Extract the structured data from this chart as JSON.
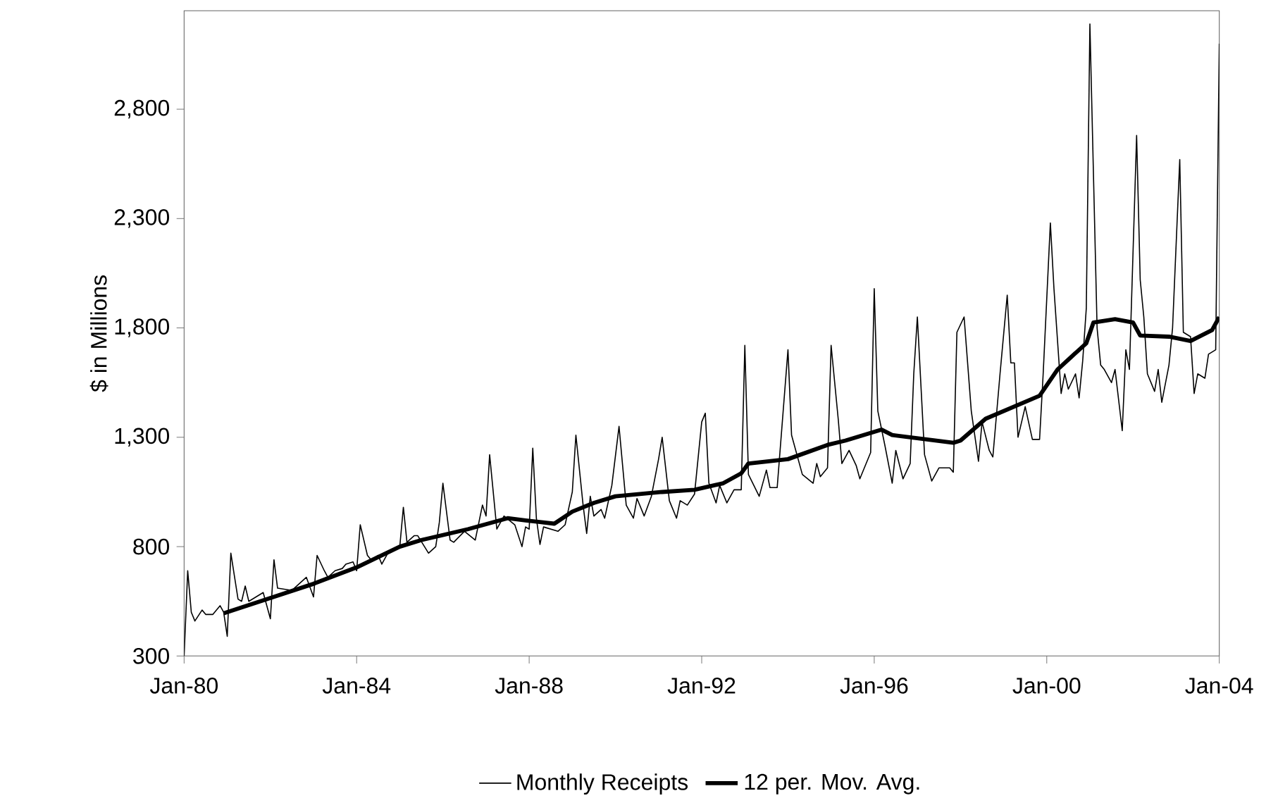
{
  "chart_data": {
    "type": "line",
    "ylabel": "$ in Millions",
    "xlim": [
      "1980-01",
      "2004-01"
    ],
    "xticks": [
      {
        "value": "1980-01",
        "label": "Jan-80"
      },
      {
        "value": "1984-01",
        "label": "Jan-84"
      },
      {
        "value": "1988-01",
        "label": "Jan-88"
      },
      {
        "value": "1992-01",
        "label": "Jan-92"
      },
      {
        "value": "1996-01",
        "label": "Jan-96"
      },
      {
        "value": "2000-01",
        "label": "Jan-00"
      },
      {
        "value": "2004-01",
        "label": "Jan-04"
      }
    ],
    "ylim": [
      300,
      3250
    ],
    "yticks": [
      300,
      800,
      {
        "value": 1300,
        "label": "1,300"
      },
      {
        "value": 1800,
        "label": "1,800"
      },
      {
        "value": 2300,
        "label": "2,300"
      },
      {
        "value": 2800,
        "label": "2,800"
      }
    ],
    "legend": "bottom",
    "grid": false,
    "marker": "none",
    "line_style": "solid",
    "series": [
      {
        "name": "Monthly Receipts",
        "color": "#000000",
        "x": [
          "1980-01",
          "1980-02",
          "1980-03",
          "1980-04",
          "1980-06",
          "1980-07",
          "1980-09",
          "1980-11",
          "1980-12",
          "1981-01",
          "1981-02",
          "1981-04",
          "1981-05",
          "1981-06",
          "1981-07",
          "1981-10",
          "1981-11",
          "1982-01",
          "1982-02",
          "1982-03",
          "1982-07",
          "1982-11",
          "1983-01",
          "1983-02",
          "1983-04",
          "1983-05",
          "1983-07",
          "1983-09",
          "1983-10",
          "1983-12",
          "1984-01",
          "1984-02",
          "1984-04",
          "1984-05",
          "1984-07",
          "1984-08",
          "1984-10",
          "1985-01",
          "1985-02",
          "1985-03",
          "1985-05",
          "1985-06",
          "1985-09",
          "1985-11",
          "1985-12",
          "1986-01",
          "1986-03",
          "1986-04",
          "1986-07",
          "1986-10",
          "1986-12",
          "1987-01",
          "1987-02",
          "1987-04",
          "1987-06",
          "1987-09",
          "1987-11",
          "1987-12",
          "1988-01",
          "1988-02",
          "1988-03",
          "1988-04",
          "1988-05",
          "1988-09",
          "1988-11",
          "1989-01",
          "1989-02",
          "1989-04",
          "1989-05",
          "1989-06",
          "1989-07",
          "1989-09",
          "1989-10",
          "1989-12",
          "1990-02",
          "1990-04",
          "1990-06",
          "1990-07",
          "1990-09",
          "1990-11",
          "1991-01",
          "1991-02",
          "1991-04",
          "1991-06",
          "1991-07",
          "1991-09",
          "1991-11",
          "1992-01",
          "1992-02",
          "1992-03",
          "1992-05",
          "1992-06",
          "1992-08",
          "1992-10",
          "1992-12",
          "1993-01",
          "1993-02",
          "1993-05",
          "1993-07",
          "1993-08",
          "1993-10",
          "1994-01",
          "1994-02",
          "1994-05",
          "1994-08",
          "1994-09",
          "1994-10",
          "1994-12",
          "1995-01",
          "1995-03",
          "1995-04",
          "1995-06",
          "1995-08",
          "1995-09",
          "1995-12",
          "1996-01",
          "1996-02",
          "1996-04",
          "1996-06",
          "1996-07",
          "1996-09",
          "1996-11",
          "1996-12",
          "1997-01",
          "1997-03",
          "1997-04",
          "1997-05",
          "1997-07",
          "1997-10",
          "1997-11",
          "1997-12",
          "1998-02",
          "1998-04",
          "1998-06",
          "1998-07",
          "1998-09",
          "1998-10",
          "1998-12",
          "1999-02",
          "1999-03",
          "1999-04",
          "1999-05",
          "1999-07",
          "1999-09",
          "1999-11",
          "1999-12",
          "2000-02",
          "2000-03",
          "2000-05",
          "2000-06",
          "2000-07",
          "2000-09",
          "2000-10",
          "2000-11",
          "2000-12",
          "2001-01",
          "2001-03",
          "2001-04",
          "2001-05",
          "2001-07",
          "2001-08",
          "2001-10",
          "2001-11",
          "2001-12",
          "2002-02",
          "2002-03",
          "2002-04",
          "2002-05",
          "2002-07",
          "2002-08",
          "2002-09",
          "2002-11",
          "2002-12",
          "2003-02",
          "2003-03",
          "2003-05",
          "2003-06",
          "2003-07",
          "2003-09",
          "2003-10",
          "2003-12",
          "2004-01"
        ],
        "values": [
          300,
          690,
          500,
          460,
          510,
          490,
          490,
          530,
          500,
          390,
          770,
          560,
          550,
          620,
          550,
          580,
          590,
          470,
          740,
          610,
          600,
          660,
          570,
          760,
          690,
          660,
          690,
          700,
          720,
          730,
          690,
          900,
          760,
          740,
          760,
          720,
          780,
          800,
          980,
          820,
          850,
          850,
          770,
          800,
          910,
          1090,
          830,
          820,
          870,
          830,
          990,
          940,
          1220,
          880,
          940,
          900,
          800,
          890,
          880,
          1250,
          930,
          810,
          890,
          870,
          900,
          1050,
          1310,
          990,
          860,
          1030,
          940,
          970,
          930,
          1080,
          1350,
          990,
          930,
          1020,
          940,
          1030,
          1200,
          1300,
          1010,
          930,
          1010,
          990,
          1040,
          1370,
          1410,
          1090,
          1000,
          1080,
          1000,
          1060,
          1060,
          1720,
          1130,
          1030,
          1150,
          1070,
          1070,
          1700,
          1310,
          1130,
          1090,
          1180,
          1120,
          1160,
          1720,
          1380,
          1180,
          1240,
          1170,
          1110,
          1230,
          1980,
          1420,
          1260,
          1090,
          1240,
          1110,
          1180,
          1590,
          1850,
          1220,
          1160,
          1100,
          1160,
          1160,
          1140,
          1780,
          1850,
          1420,
          1190,
          1370,
          1240,
          1210,
          1590,
          1950,
          1640,
          1640,
          1300,
          1440,
          1290,
          1290,
          1590,
          2280,
          1980,
          1500,
          1590,
          1520,
          1590,
          1480,
          1650,
          1890,
          3190,
          1800,
          1630,
          1610,
          1550,
          1610,
          1330,
          1700,
          1610,
          2680,
          2020,
          1850,
          1590,
          1510,
          1610,
          1460,
          1630,
          1800,
          2570,
          1780,
          1760,
          1500,
          1590,
          1570,
          1680,
          1700,
          3100
        ]
      },
      {
        "name": "12 per. Mov. Avg.",
        "color": "#000000",
        "x": [
          "1980-12",
          "1982-01",
          "1983-01",
          "1984-01",
          "1985-01",
          "1985-07",
          "1986-08",
          "1987-07",
          "1987-12",
          "1988-08",
          "1989-01",
          "1989-07",
          "1990-01",
          "1991-02",
          "1991-11",
          "1992-07",
          "1992-12",
          "1993-02",
          "1994-01",
          "1994-12",
          "1995-05",
          "1996-03",
          "1996-06",
          "1997-11",
          "1998-01",
          "1998-08",
          "1999-11",
          "2000-04",
          "2000-12",
          "2001-02",
          "2001-08",
          "2002-01",
          "2002-03",
          "2002-11",
          "2003-05",
          "2003-11",
          "2004-01"
        ],
        "values": [
          495,
          565,
          630,
          705,
          800,
          830,
          880,
          930,
          920,
          905,
          960,
          1000,
          1030,
          1050,
          1060,
          1090,
          1135,
          1180,
          1200,
          1265,
          1285,
          1335,
          1310,
          1275,
          1285,
          1385,
          1490,
          1610,
          1730,
          1825,
          1840,
          1825,
          1765,
          1760,
          1740,
          1790,
          1850
        ]
      }
    ]
  }
}
